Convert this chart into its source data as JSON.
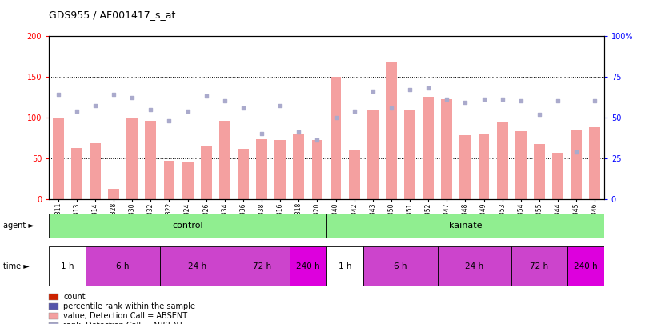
{
  "title": "GDS955 / AF001417_s_at",
  "samples": [
    "GSM19311",
    "GSM19313",
    "GSM19314",
    "GSM19328",
    "GSM19330",
    "GSM19332",
    "GSM19322",
    "GSM19324",
    "GSM19326",
    "GSM19334",
    "GSM19336",
    "GSM19338",
    "GSM19316",
    "GSM19318",
    "GSM19320",
    "GSM19340",
    "GSM19342",
    "GSM19343",
    "GSM19350",
    "GSM19351",
    "GSM19352",
    "GSM19347",
    "GSM19348",
    "GSM19349",
    "GSM19353",
    "GSM19354",
    "GSM19355",
    "GSM19344",
    "GSM19345",
    "GSM19346"
  ],
  "bar_values": [
    100,
    63,
    69,
    13,
    100,
    96,
    47,
    46,
    66,
    96,
    62,
    73,
    72,
    80,
    72,
    150,
    60,
    110,
    168,
    110,
    125,
    122,
    78,
    80,
    95,
    83,
    68,
    57,
    85,
    88
  ],
  "rank_values_pct": [
    64,
    54,
    57,
    64,
    62,
    55,
    48,
    54,
    63,
    60,
    56,
    40,
    57,
    41,
    36,
    50,
    54,
    66,
    56,
    67,
    68,
    61,
    59,
    61,
    61,
    60,
    52,
    60,
    29,
    60
  ],
  "bar_absent_color": "#F4A0A0",
  "rank_absent_color": "#AAAACC",
  "ylim_left": [
    0,
    200
  ],
  "ylim_right": [
    0,
    100
  ],
  "yticks_left": [
    0,
    50,
    100,
    150,
    200
  ],
  "yticks_right": [
    0,
    25,
    50,
    75,
    100
  ],
  "ytick_labels_left": [
    "0",
    "50",
    "100",
    "150",
    "200"
  ],
  "ytick_labels_right": [
    "0",
    "25",
    "50",
    "75",
    "100%"
  ],
  "time_groups": [
    {
      "label": "1 h",
      "start": 0,
      "end": 2,
      "color": "#FFFFFF"
    },
    {
      "label": "6 h",
      "start": 2,
      "end": 6,
      "color": "#CC44CC"
    },
    {
      "label": "24 h",
      "start": 6,
      "end": 10,
      "color": "#CC44CC"
    },
    {
      "label": "72 h",
      "start": 10,
      "end": 13,
      "color": "#CC44CC"
    },
    {
      "label": "240 h",
      "start": 13,
      "end": 15,
      "color": "#DD00DD"
    },
    {
      "label": "1 h",
      "start": 15,
      "end": 17,
      "color": "#FFFFFF"
    },
    {
      "label": "6 h",
      "start": 17,
      "end": 21,
      "color": "#CC44CC"
    },
    {
      "label": "24 h",
      "start": 21,
      "end": 25,
      "color": "#CC44CC"
    },
    {
      "label": "72 h",
      "start": 25,
      "end": 28,
      "color": "#CC44CC"
    },
    {
      "label": "240 h",
      "start": 28,
      "end": 30,
      "color": "#DD00DD"
    }
  ],
  "legend_items": [
    {
      "label": "count",
      "color": "#CC2200"
    },
    {
      "label": "percentile rank within the sample",
      "color": "#5555AA"
    },
    {
      "label": "value, Detection Call = ABSENT",
      "color": "#F4A0A0"
    },
    {
      "label": "rank, Detection Call = ABSENT",
      "color": "#AAAACC"
    }
  ]
}
